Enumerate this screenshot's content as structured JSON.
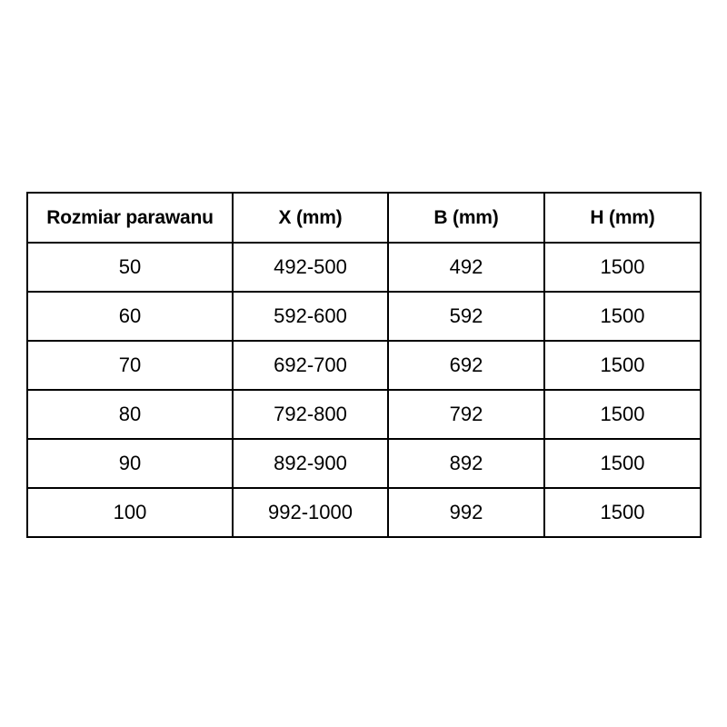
{
  "chart_data": {
    "type": "table",
    "title": "",
    "columns": [
      "Rozmiar parawanu",
      "X (mm)",
      "B (mm)",
      "H (mm)"
    ],
    "rows": [
      [
        "50",
        "492-500",
        "492",
        "1500"
      ],
      [
        "60",
        "592-600",
        "592",
        "1500"
      ],
      [
        "70",
        "692-700",
        "692",
        "1500"
      ],
      [
        "80",
        "792-800",
        "792",
        "1500"
      ],
      [
        "90",
        "892-900",
        "892",
        "1500"
      ],
      [
        "100",
        "992-1000",
        "992",
        "1500"
      ]
    ],
    "layout_hints": {
      "grid": "on",
      "header_bold": true
    }
  },
  "style": {
    "border_color": "#000000",
    "text_color": "#000000",
    "background_color": "#ffffff"
  }
}
